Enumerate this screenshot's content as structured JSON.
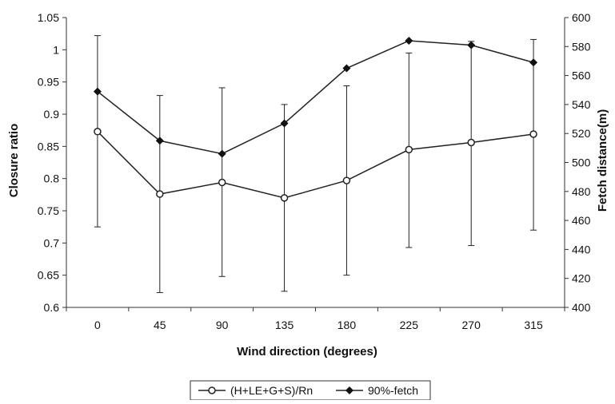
{
  "chart_data": {
    "type": "line",
    "title": "",
    "xlabel": "Wind direction (degrees)",
    "ylabel_left": "Closure ratio",
    "ylabel_right": "Fetch distance(m)",
    "categories": [
      "0",
      "45",
      "90",
      "135",
      "180",
      "225",
      "270",
      "315"
    ],
    "ylim_left": [
      0.6,
      1.05
    ],
    "yticks_left": [
      "0.6",
      "0.65",
      "0.7",
      "0.75",
      "0.8",
      "0.85",
      "0.9",
      "0.95",
      "1",
      "1.05"
    ],
    "ylim_right": [
      400,
      600
    ],
    "yticks_right": [
      "400",
      "420",
      "440",
      "460",
      "480",
      "500",
      "520",
      "540",
      "560",
      "580",
      "600"
    ],
    "grid": false,
    "legend_position": "bottom",
    "series": [
      {
        "name": "(H+LE+G+S)/Rn",
        "axis": "left",
        "marker": "open-circle",
        "values": [
          0.873,
          0.776,
          0.794,
          0.77,
          0.797,
          0.845,
          0.856,
          0.869
        ],
        "error_low": [
          0.725,
          0.623,
          0.648,
          0.625,
          0.65,
          0.693,
          0.696,
          0.72
        ],
        "error_high": [
          1.022,
          0.929,
          0.941,
          0.915,
          0.944,
          0.995,
          1.013,
          1.016
        ]
      },
      {
        "name": "90%-fetch",
        "axis": "right",
        "marker": "filled-diamond",
        "values": [
          549,
          515,
          506,
          527,
          565,
          584,
          581,
          569
        ]
      }
    ],
    "colors": {
      "line": "#222222",
      "axis": "#333333",
      "background": "#ffffff"
    }
  }
}
